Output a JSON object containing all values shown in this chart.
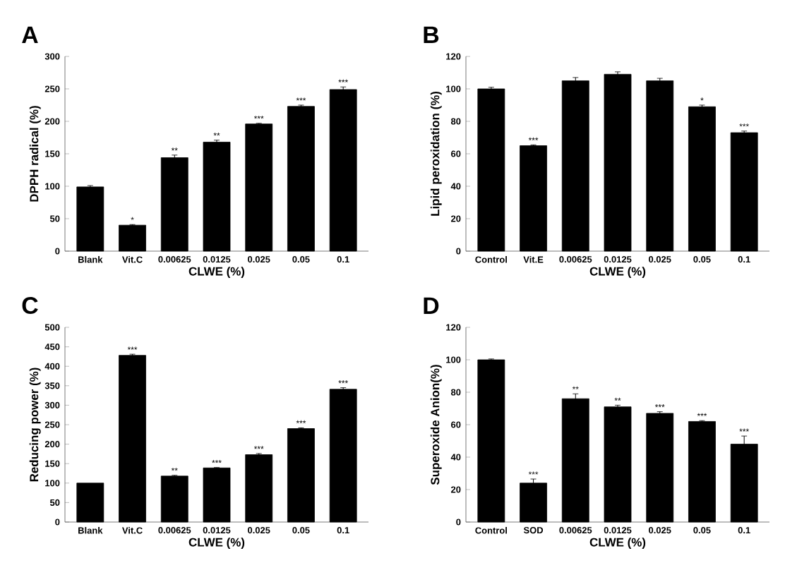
{
  "chart_data": [
    {
      "type": "bar",
      "title": "A",
      "xlabel": "CLWE (%)",
      "ylabel": "DPPH radical (%)",
      "categories": [
        "Blank",
        "Vit.C",
        "0.00625",
        "0.0125",
        "0.025",
        "0.05",
        "0.1"
      ],
      "values": [
        99,
        40,
        144,
        168,
        196,
        223,
        249
      ],
      "errors": [
        2,
        1,
        4,
        3,
        1,
        2,
        4
      ],
      "value_labels": [
        null,
        "*",
        "**",
        "**",
        "***",
        "***",
        "***"
      ],
      "color": "#000000",
      "ylim": [
        0,
        300
      ],
      "yticks": [
        0,
        50,
        100,
        150,
        200,
        250,
        300
      ]
    },
    {
      "type": "bar",
      "title": "B",
      "xlabel": "CLWE (%)",
      "ylabel": "Lipid peroxidation (%)",
      "categories": [
        "Control",
        "Vit.E",
        "0.00625",
        "0.0125",
        "0.025",
        "0.05",
        "0.1"
      ],
      "values": [
        100,
        65,
        105,
        109,
        105,
        89,
        73
      ],
      "errors": [
        1,
        0.5,
        2,
        1.5,
        1.5,
        1,
        1
      ],
      "value_labels": [
        null,
        "***",
        null,
        null,
        null,
        "*",
        "***"
      ],
      "color": "#000000",
      "ylim": [
        0,
        120
      ],
      "yticks": [
        0,
        20,
        40,
        60,
        80,
        100,
        120
      ]
    },
    {
      "type": "bar",
      "title": "C",
      "xlabel": "CLWE (%)",
      "ylabel": "Reducing power (%)",
      "categories": [
        "Blank",
        "Vit.C",
        "0.00625",
        "0.0125",
        "0.025",
        "0.05",
        "0.1"
      ],
      "values": [
        100,
        428,
        118,
        139,
        173,
        240,
        341
      ],
      "errors": [
        null,
        3,
        2,
        1,
        3,
        2,
        4
      ],
      "value_labels": [
        null,
        "***",
        "**",
        "***",
        "***",
        "***",
        "***"
      ],
      "color": "#000000",
      "ylim": [
        0,
        500
      ],
      "yticks": [
        0,
        50,
        100,
        150,
        200,
        250,
        300,
        350,
        400,
        450,
        500
      ]
    },
    {
      "type": "bar",
      "title": "D",
      "xlabel": "CLWE (%)",
      "ylabel": "Superoxide Anion(%)",
      "categories": [
        "Control",
        "SOD",
        "0.00625",
        "0.0125",
        "0.025",
        "0.05",
        "0.1"
      ],
      "values": [
        100,
        24,
        76,
        71,
        67,
        62,
        48
      ],
      "errors": [
        0.5,
        2.5,
        3,
        1,
        1,
        0.5,
        5
      ],
      "value_labels": [
        null,
        "***",
        "**",
        "**",
        "***",
        "***",
        "***"
      ],
      "color": "#000000",
      "ylim": [
        0,
        120
      ],
      "yticks": [
        0,
        20,
        40,
        60,
        80,
        100,
        120
      ]
    }
  ]
}
